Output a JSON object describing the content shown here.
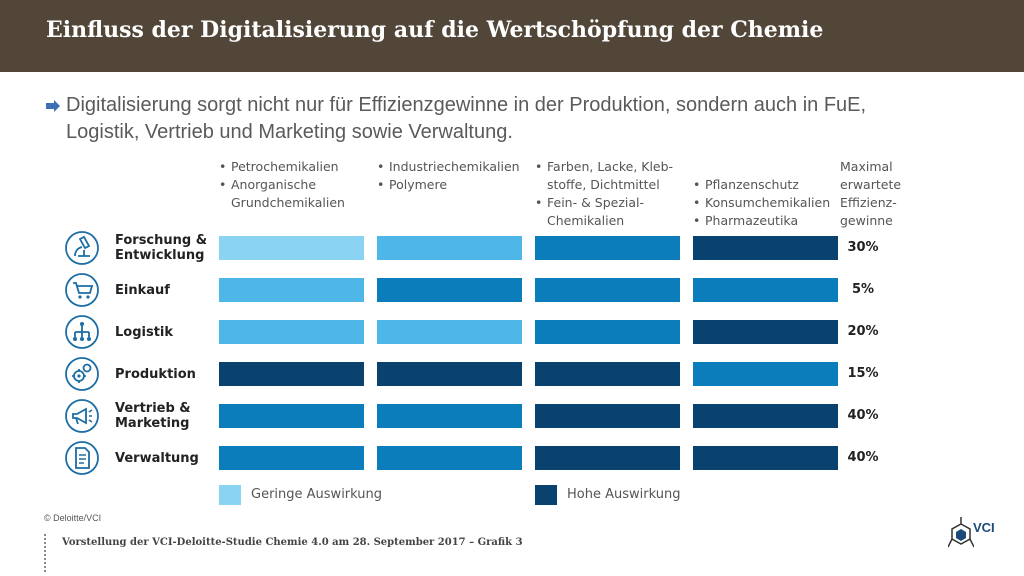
{
  "header": {
    "title": "Einfluss der Digitalisierung auf die Wertschöpfung der Chemie"
  },
  "subtitle": {
    "line1": "Digitalisierung sorgt nicht nur für Effizienzgewinne in der Produktion, sondern auch in FuE,",
    "line2": "Logistik, Vertrieb und Marketing sowie Verwaltung."
  },
  "colors": {
    "header_bg": "#524639",
    "arrow": "#3d6fb5",
    "icon": "#1c6ea4"
  },
  "chart_data": {
    "type": "heatmap",
    "title": "",
    "impact_scale": [
      {
        "level": 1,
        "color": "#8ad3f3"
      },
      {
        "level": 2,
        "color": "#4fb6e8"
      },
      {
        "level": 3,
        "color": "#0b7dba"
      },
      {
        "level": 4,
        "color": "#09426e"
      }
    ],
    "columns": [
      {
        "id": "petro",
        "lines": [
          {
            "text": "Petrochemikalien",
            "bullet": true
          },
          {
            "text": "Anorganische",
            "bullet": true
          },
          {
            "text": "Grundchemikalien",
            "bullet": false
          }
        ]
      },
      {
        "id": "industrie",
        "lines": [
          {
            "text": "Industriechemikalien",
            "bullet": true
          },
          {
            "text": "Polymere",
            "bullet": true
          }
        ]
      },
      {
        "id": "farben",
        "lines": [
          {
            "text": "Farben, Lacke, Kleb-",
            "bullet": true
          },
          {
            "text": "stoffe, Dichtmittel",
            "bullet": false
          },
          {
            "text": "Fein- & Spezial-",
            "bullet": true
          },
          {
            "text": "Chemikalien",
            "bullet": false
          }
        ]
      },
      {
        "id": "pflanzen",
        "lines": [
          {
            "text": "Pflanzenschutz",
            "bullet": true
          },
          {
            "text": "Konsumchemikalien",
            "bullet": true
          },
          {
            "text": "Pharmazeutika",
            "bullet": true
          }
        ]
      }
    ],
    "max_header": [
      "Maximal",
      "erwartete",
      "Effizienz-",
      "gewinne"
    ],
    "rows": [
      {
        "id": "fue",
        "icon": "microscope-icon",
        "label": [
          "Forschung &",
          "Entwicklung"
        ],
        "impact": [
          1,
          2,
          3,
          4
        ],
        "max_gain": "30%"
      },
      {
        "id": "einkauf",
        "icon": "shopping-cart-icon",
        "label": [
          "Einkauf"
        ],
        "impact": [
          2,
          3,
          3,
          3
        ],
        "max_gain": "5%"
      },
      {
        "id": "logistik",
        "icon": "network-tree-icon",
        "label": [
          "Logistik"
        ],
        "impact": [
          2,
          2,
          3,
          4
        ],
        "max_gain": "20%"
      },
      {
        "id": "produktion",
        "icon": "gears-icon",
        "label": [
          "Produktion"
        ],
        "impact": [
          4,
          4,
          4,
          3
        ],
        "max_gain": "15%"
      },
      {
        "id": "vertrieb",
        "icon": "megaphone-icon",
        "label": [
          "Vertrieb &",
          "Marketing"
        ],
        "impact": [
          3,
          3,
          4,
          4
        ],
        "max_gain": "40%"
      },
      {
        "id": "verwaltung",
        "icon": "document-icon",
        "label": [
          "Verwaltung"
        ],
        "impact": [
          3,
          3,
          4,
          4
        ],
        "max_gain": "40%"
      }
    ],
    "legend": [
      {
        "label": "Geringe Auswirkung",
        "color": "#8ad3f3"
      },
      {
        "label": "Hohe Auswirkung",
        "color": "#09426e"
      }
    ]
  },
  "source": "© Deloitte/VCI",
  "footer": "Vorstellung der VCI-Deloitte-Studie Chemie 4.0 am 28. September 2017 – Grafik 3",
  "logo": {
    "text": "VCI"
  }
}
